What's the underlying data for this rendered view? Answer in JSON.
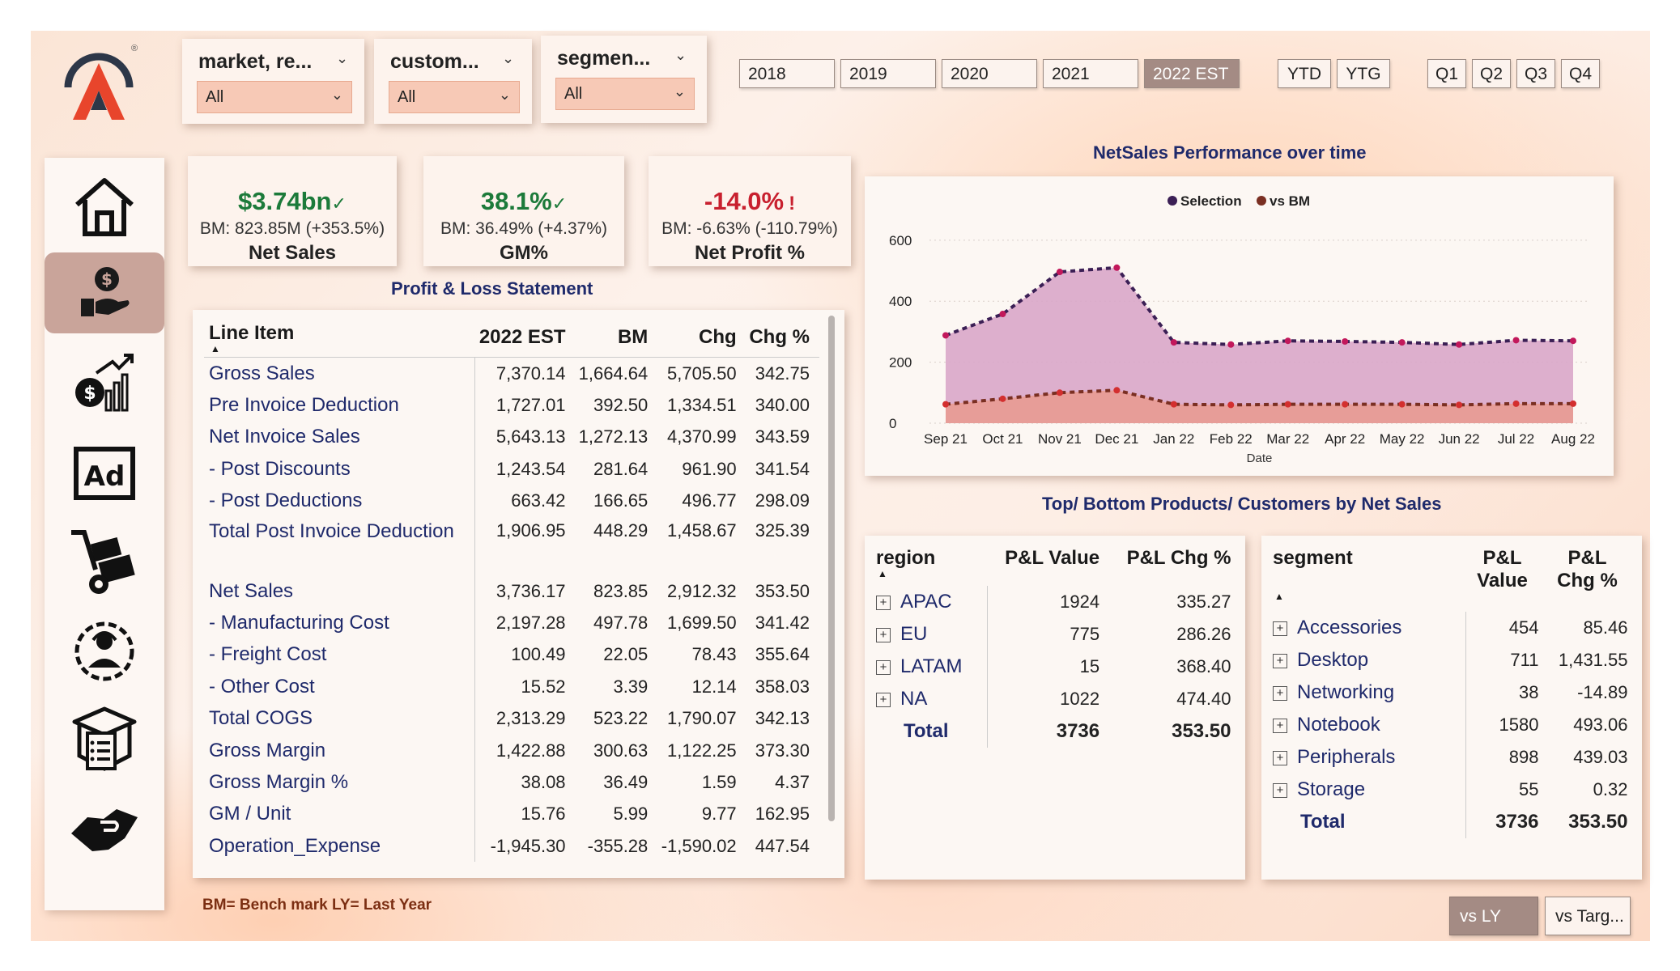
{
  "brand": {
    "registered_mark": "®"
  },
  "slicers": [
    {
      "title": "market, re...",
      "value": "All"
    },
    {
      "title": "custom...",
      "value": "All"
    },
    {
      "title": "segmen...",
      "value": "All"
    }
  ],
  "years": [
    "2018",
    "2019",
    "2020",
    "2021",
    "2022 EST"
  ],
  "selected_year": "2022 EST",
  "ytd_ytg": [
    "YTD",
    "YTG"
  ],
  "quarters": [
    "Q1",
    "Q2",
    "Q3",
    "Q4"
  ],
  "sidebar": {
    "items": [
      "home-icon",
      "finance-icon",
      "sales-growth-icon",
      "ad-icon",
      "supply-chain-icon",
      "executive-icon",
      "inventory-icon",
      "deal-icon"
    ],
    "active": "finance-icon"
  },
  "kpis": [
    {
      "value": "$3.74bn",
      "mark": "✓",
      "bm": "BM: 823.85M (+353.5%)",
      "label": "Net Sales",
      "status": "good"
    },
    {
      "value": "38.1%",
      "mark": "✓",
      "bm": "BM: 36.49% (+4.37%)",
      "label": "GM%",
      "status": "good"
    },
    {
      "value": "-14.0%",
      "mark": "!",
      "bm": "BM: -6.63% (-110.79%)",
      "label": "Net Profit %",
      "status": "bad"
    }
  ],
  "pl_title": "Profit & Loss Statement",
  "pl_table": {
    "columns": [
      "Line Item",
      "2022 EST",
      "BM",
      "Chg",
      "Chg %"
    ],
    "rows": [
      [
        "Gross Sales",
        "7,370.14",
        "1,664.64",
        "5,705.50",
        "342.75"
      ],
      [
        "Pre Invoice Deduction",
        "1,727.01",
        "392.50",
        "1,334.51",
        "340.00"
      ],
      [
        "Net Invoice Sales",
        "5,643.13",
        "1,272.13",
        "4,370.99",
        "343.59"
      ],
      [
        "- Post Discounts",
        "1,243.54",
        "281.64",
        "961.90",
        "341.54"
      ],
      [
        "- Post Deductions",
        "663.42",
        "166.65",
        "496.77",
        "298.09"
      ],
      [
        "Total Post Invoice Deduction",
        "1,906.95",
        "448.29",
        "1,458.67",
        "325.39"
      ],
      [
        "Net Sales",
        "3,736.17",
        "823.85",
        "2,912.32",
        "353.50"
      ],
      [
        "- Manufacturing Cost",
        "2,197.28",
        "497.78",
        "1,699.50",
        "341.42"
      ],
      [
        "- Freight Cost",
        "100.49",
        "22.05",
        "78.43",
        "355.64"
      ],
      [
        "- Other Cost",
        "15.52",
        "3.39",
        "12.14",
        "358.03"
      ],
      [
        "Total COGS",
        "2,313.29",
        "523.22",
        "1,790.07",
        "342.13"
      ],
      [
        "Gross Margin",
        "1,422.88",
        "300.63",
        "1,122.25",
        "373.30"
      ],
      [
        "Gross Margin %",
        "38.08",
        "36.49",
        "1.59",
        "4.37"
      ],
      [
        "GM / Unit",
        "15.76",
        "5.99",
        "9.77",
        "162.95"
      ],
      [
        "Operation_Expense",
        "-1,945.30",
        "-355.28",
        "-1,590.02",
        "447.54"
      ]
    ]
  },
  "chart_title": "NetSales Performance over time",
  "chart_data": {
    "type": "area",
    "x": [
      "Sep 21",
      "Oct 21",
      "Nov 21",
      "Dec 21",
      "Jan 22",
      "Feb 22",
      "Mar 22",
      "Apr 22",
      "May 22",
      "Jun 22",
      "Jul 22",
      "Aug 22"
    ],
    "xlabel": "Date",
    "ylabel": "",
    "ylim": [
      0,
      650
    ],
    "yticks": [
      0,
      200,
      400,
      600
    ],
    "legend_position": "top",
    "series": [
      {
        "name": "Selection",
        "color": "#3b1f55",
        "fill": "#d9a6c9",
        "values": [
          288,
          358,
          496,
          510,
          265,
          258,
          270,
          268,
          265,
          258,
          272,
          270
        ]
      },
      {
        "name": "vs BM",
        "color": "#7a2f22",
        "fill": "#e89b92",
        "values": [
          62,
          80,
          100,
          108,
          62,
          60,
          62,
          62,
          62,
          60,
          64,
          64
        ]
      }
    ]
  },
  "topbottom_title": "Top/ Bottom Products/ Customers by Net Sales",
  "region_table": {
    "columns": [
      "region",
      "P&L Value",
      "P&L Chg %"
    ],
    "rows": [
      [
        "APAC",
        "1924",
        "335.27"
      ],
      [
        "EU",
        "775",
        "286.26"
      ],
      [
        "LATAM",
        "15",
        "368.40"
      ],
      [
        "NA",
        "1022",
        "474.40"
      ]
    ],
    "total": [
      "Total",
      "3736",
      "353.50"
    ]
  },
  "segment_table": {
    "columns": [
      "segment",
      "P&L Value",
      "P&L Chg %"
    ],
    "rows": [
      [
        "Accessories",
        "454",
        "85.46"
      ],
      [
        "Desktop",
        "711",
        "1,431.55"
      ],
      [
        "Networking",
        "38",
        "-14.89"
      ],
      [
        "Notebook",
        "1580",
        "493.06"
      ],
      [
        "Peripherals",
        "898",
        "439.03"
      ],
      [
        "Storage",
        "55",
        "0.32"
      ]
    ],
    "total": [
      "Total",
      "3736",
      "353.50"
    ]
  },
  "footnote": "BM= Bench mark  LY= Last Year",
  "compare_buttons": {
    "vs_ly": "vs LY",
    "vs_target": "vs Targ..."
  }
}
